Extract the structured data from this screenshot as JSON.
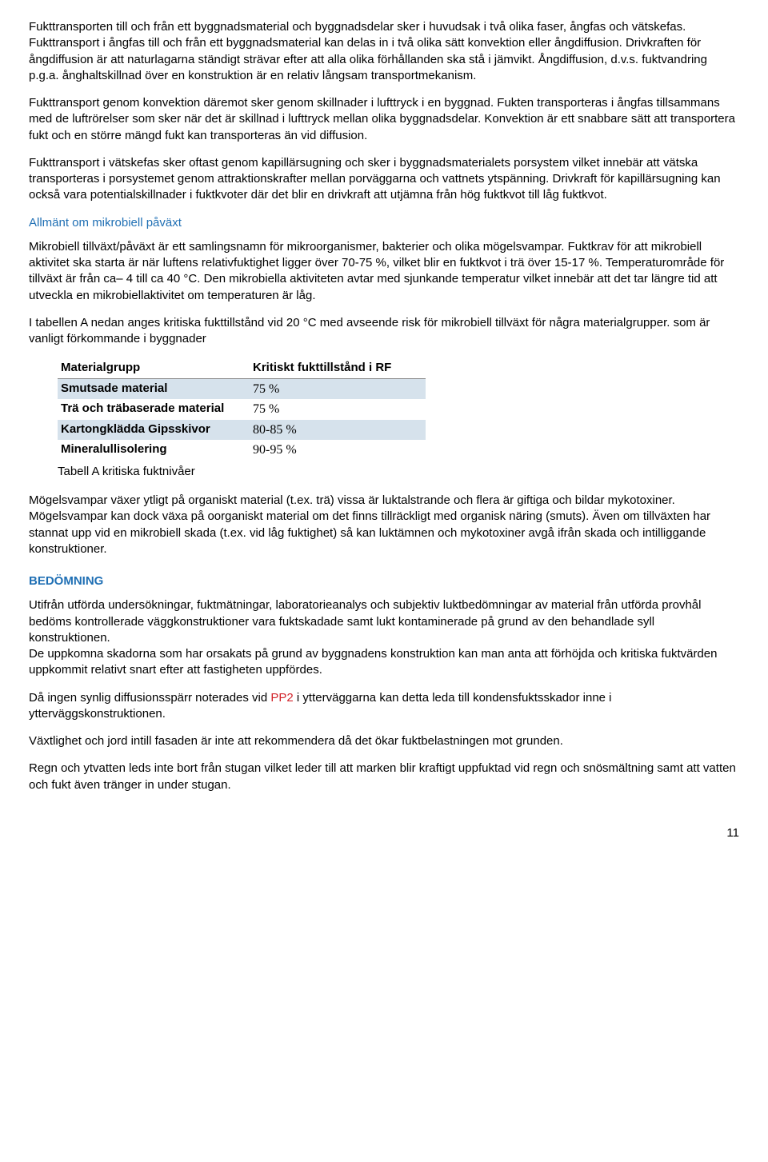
{
  "p1": "Fukttransporten till och från ett byggnadsmaterial och byggnadsdelar sker i huvudsak i två olika faser, ångfas och vätskefas. Fukttransport i ångfas till och från ett byggnadsmaterial kan delas in i två olika sätt konvektion eller ångdiffusion. Drivkraften för ångdiffusion är att naturlagarna ständigt strävar efter att alla olika förhållanden ska stå i jämvikt. Ångdiffusion, d.v.s. fuktvandring p.g.a. ånghaltskillnad över en konstruktion är en relativ långsam transportmekanism.",
  "p2": "Fukttransport genom konvektion däremot sker genom skillnader i lufttryck i en byggnad. Fukten transporteras i ångfas tillsammans med de luftrörelser som sker när det är skillnad i lufttryck mellan olika byggnadsdelar. Konvektion är ett snabbare sätt att transportera fukt och en större mängd fukt kan transporteras än vid diffusion.",
  "p3": "Fukttransport i vätskefas sker oftast genom kapillärsugning och sker i byggnadsmaterialets porsystem vilket innebär att vätska transporteras i porsystemet genom attraktionskrafter mellan porväggarna och vattnets ytspänning. Drivkraft för kapillärsugning kan också vara potentialskillnader i fuktkvoter där det blir en drivkraft att utjämna från hög fuktkvot till låg fuktkvot.",
  "sectionMicrobial": "Allmänt om mikrobiell påväxt",
  "p4": "Mikrobiell tillväxt/påväxt är ett samlingsnamn för mikroorganismer, bakterier och olika mögelsvampar. Fuktkrav för att mikrobiell aktivitet ska starta är när luftens relativfuktighet ligger över 70-75 %, vilket blir en fuktkvot i trä över 15-17 %. Temperaturområde för tillväxt är från ca– 4 till ca 40 °C. Den mikrobiella aktiviteten avtar med sjunkande temperatur vilket innebär att det tar längre tid att utveckla en mikrobiellaktivitet om temperaturen är låg.",
  "p5": "I tabellen A nedan anges kritiska fukttillstånd vid 20 °C med avseende risk för mikrobiell tillväxt för några materialgrupper. som är vanligt förkommande i byggnader",
  "table": {
    "col1": "Materialgrupp",
    "col2": "Kritiskt fukttillstånd i RF",
    "rows": [
      {
        "name": "Smutsade material",
        "val": "75 %",
        "shaded": true
      },
      {
        "name": "Trä och träbaserade material",
        "val": "75 %",
        "shaded": false
      },
      {
        "name": "Kartongklädda Gipsskivor",
        "val": "80-85 %",
        "shaded": true
      },
      {
        "name": "Mineralullisolering",
        "val": "90-95 %",
        "shaded": false
      }
    ],
    "caption": "Tabell A kritiska fuktnivåer"
  },
  "p6": "Mögelsvampar växer ytligt på organiskt material (t.ex. trä) vissa är luktalstrande och flera är giftiga och bildar mykotoxiner. Mögelsvampar kan dock växa på oorganiskt material om det finns tillräckligt med organisk näring (smuts). Även om tillväxten har stannat upp vid en mikrobiell skada (t.ex. vid låg fuktighet) så kan luktämnen och mykotoxiner avgå ifrån skada och intilliggande konstruktioner.",
  "sectionBedomning": "BEDÖMNING",
  "p7": "Utifrån utförda undersökningar, fuktmätningar, laboratorieanalys och subjektiv luktbedömningar av material från utförda provhål bedöms kontrollerade väggkonstruktioner vara fuktskadade samt lukt kontaminerade på grund av den behandlade syll konstruktionen.",
  "p7b": " De uppkomna skadorna som har orsakats på grund av byggnadens konstruktion kan man anta att förhöjda och kritiska fuktvärden uppkommit relativt snart efter att fastigheten uppfördes.",
  "p8_pre": "Då ingen synlig diffusionsspärr noterades vid ",
  "p8_red": "PP2",
  "p8_post": " i ytterväggarna kan detta leda till kondensfuktsskador inne i ytterväggskonstruktionen.",
  "p9": "Växtlighet och jord intill fasaden är inte att rekommendera då det ökar fuktbelastningen mot grunden.",
  "p10": "Regn och ytvatten leds inte bort från stugan vilket leder till att marken blir kraftigt uppfuktad vid regn och snösmältning samt att vatten och fukt även tränger in under stugan.",
  "pageNumber": "11"
}
